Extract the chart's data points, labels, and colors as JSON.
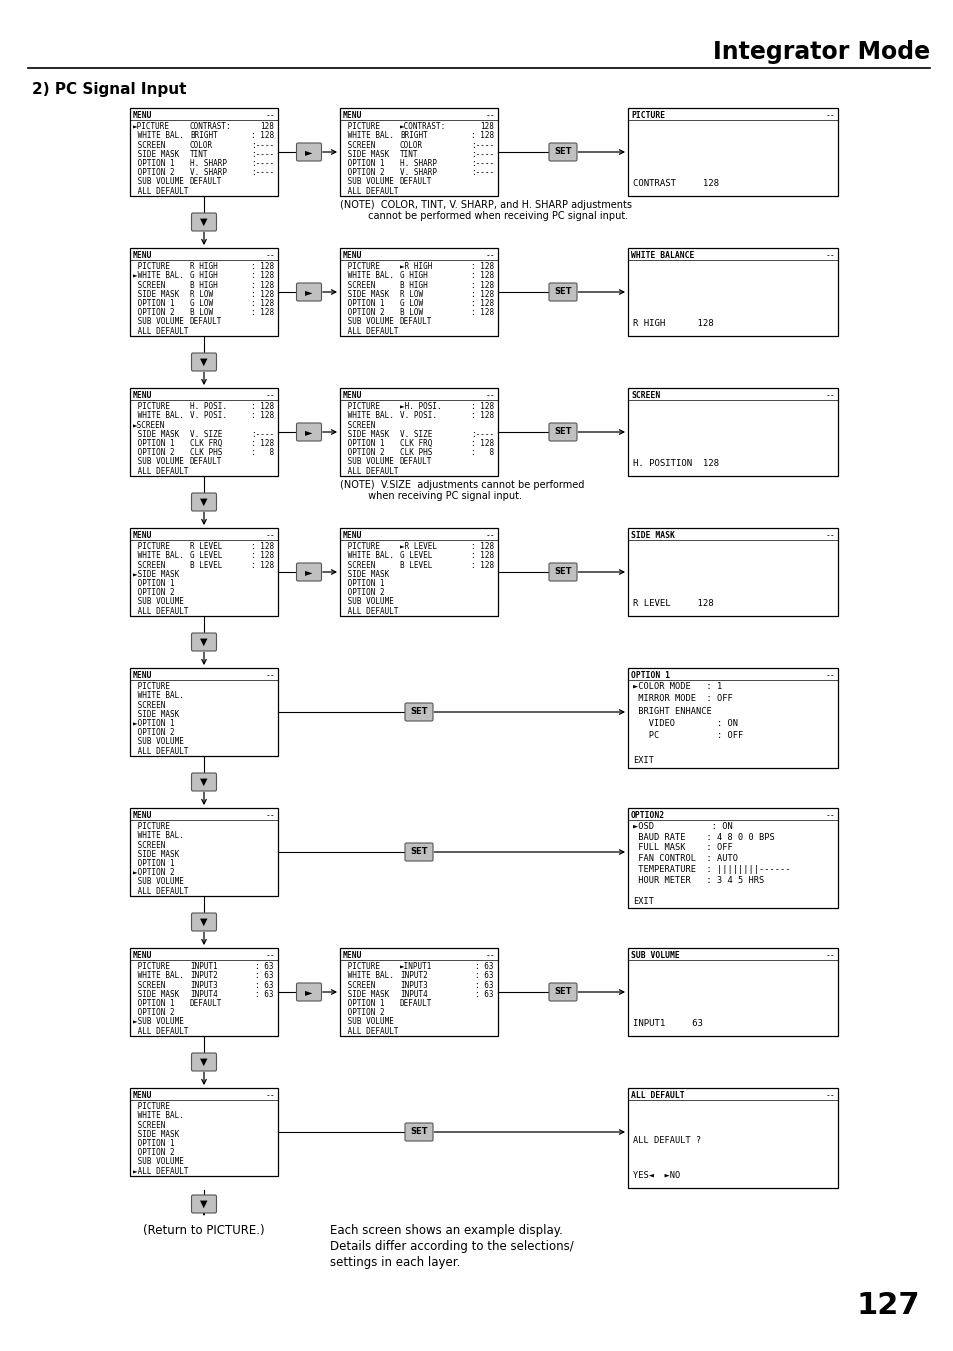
{
  "title": "Integrator Mode",
  "section": "2) PC Signal Input",
  "page_number": "127",
  "bg_color": "#ffffff",
  "rows": [
    {
      "left_menu": {
        "title": "MENU",
        "lines": [
          [
            "►PICTURE",
            "CONTRAST:",
            "128"
          ],
          [
            " WHITE BAL.",
            "BRIGHT",
            ": 128"
          ],
          [
            " SCREEN",
            "COLOR",
            ":----"
          ],
          [
            " SIDE MASK",
            "TINT",
            ":----"
          ],
          [
            " OPTION 1",
            "H. SHARP",
            ":----"
          ],
          [
            " OPTION 2",
            "V. SHARP",
            ":----"
          ],
          [
            " SUB VOLUME",
            "DEFAULT",
            ""
          ],
          [
            " ALL DEFAULT",
            "",
            ""
          ]
        ]
      },
      "has_mid": true,
      "mid_menu": {
        "title": "MENU",
        "lines": [
          [
            " PICTURE",
            "►CONTRAST:",
            "128"
          ],
          [
            " WHITE BAL.",
            "BRIGHT",
            ": 128"
          ],
          [
            " SCREEN",
            "COLOR",
            ":----"
          ],
          [
            " SIDE MASK",
            "TINT",
            ":----"
          ],
          [
            " OPTION 1",
            "H. SHARP",
            ":----"
          ],
          [
            " OPTION 2",
            "V. SHARP",
            ":----"
          ],
          [
            " SUB VOLUME",
            "DEFAULT",
            ""
          ],
          [
            " ALL DEFAULT",
            "",
            ""
          ]
        ]
      },
      "right_box": {
        "title": "PICTURE",
        "bottom_text": "CONTRAST     128"
      },
      "note_lines": [
        "(NOTE)  COLOR, TINT, V. SHARP, and H. SHARP adjustments",
        "         cannot be performed when receiving PC signal input."
      ]
    },
    {
      "left_menu": {
        "title": "MENU",
        "lines": [
          [
            " PICTURE",
            "R HIGH",
            ": 128"
          ],
          [
            "►WHITE BAL.",
            "G HIGH",
            ": 128"
          ],
          [
            " SCREEN",
            "B HIGH",
            ": 128"
          ],
          [
            " SIDE MASK",
            "R LOW",
            ": 128"
          ],
          [
            " OPTION 1",
            "G LOW",
            ": 128"
          ],
          [
            " OPTION 2",
            "B LOW",
            ": 128"
          ],
          [
            " SUB VOLUME",
            "DEFAULT",
            ""
          ],
          [
            " ALL DEFAULT",
            "",
            ""
          ]
        ]
      },
      "has_mid": true,
      "mid_menu": {
        "title": "MENU",
        "lines": [
          [
            " PICTURE",
            "►R HIGH",
            ": 128"
          ],
          [
            " WHITE BAL.",
            "G HIGH",
            ": 128"
          ],
          [
            " SCREEN",
            "B HIGH",
            ": 128"
          ],
          [
            " SIDE MASK",
            "R LOW",
            ": 128"
          ],
          [
            " OPTION 1",
            "G LOW",
            ": 128"
          ],
          [
            " OPTION 2",
            "B LOW",
            ": 128"
          ],
          [
            " SUB VOLUME",
            "DEFAULT",
            ""
          ],
          [
            " ALL DEFAULT",
            "",
            ""
          ]
        ]
      },
      "right_box": {
        "title": "WHITE BALANCE",
        "bottom_text": "R HIGH      128"
      },
      "note_lines": []
    },
    {
      "left_menu": {
        "title": "MENU",
        "lines": [
          [
            " PICTURE",
            "H. POSI.",
            ": 128"
          ],
          [
            " WHITE BAL.",
            "V. POSI.",
            ": 128"
          ],
          [
            "►SCREEN",
            "",
            ""
          ],
          [
            " SIDE MASK",
            "V. SIZE",
            ":----"
          ],
          [
            " OPTION 1",
            "CLK FRQ",
            ": 128"
          ],
          [
            " OPTION 2",
            "CLK PHS",
            ":   8"
          ],
          [
            " SUB VOLUME",
            "DEFAULT",
            ""
          ],
          [
            " ALL DEFAULT",
            "",
            ""
          ]
        ]
      },
      "has_mid": true,
      "mid_menu": {
        "title": "MENU",
        "lines": [
          [
            " PICTURE",
            "►H. POSI.",
            ": 128"
          ],
          [
            " WHITE BAL.",
            "V. POSI.",
            ": 128"
          ],
          [
            " SCREEN",
            "",
            ""
          ],
          [
            " SIDE MASK",
            "V. SIZE",
            ":----"
          ],
          [
            " OPTION 1",
            "CLK FRQ",
            ": 128"
          ],
          [
            " OPTION 2",
            "CLK PHS",
            ":   8"
          ],
          [
            " SUB VOLUME",
            "DEFAULT",
            ""
          ],
          [
            " ALL DEFAULT",
            "",
            ""
          ]
        ]
      },
      "right_box": {
        "title": "SCREEN",
        "bottom_text": "H. POSITION  128"
      },
      "note_lines": [
        "(NOTE)  V.SIZE  adjustments cannot be performed",
        "         when receiving PC signal input."
      ]
    },
    {
      "left_menu": {
        "title": "MENU",
        "lines": [
          [
            " PICTURE",
            "R LEVEL",
            ": 128"
          ],
          [
            " WHITE BAL.",
            "G LEVEL",
            ": 128"
          ],
          [
            " SCREEN",
            "B LEVEL",
            ": 128"
          ],
          [
            "►SIDE MASK",
            "",
            ""
          ],
          [
            " OPTION 1",
            "",
            ""
          ],
          [
            " OPTION 2",
            "",
            ""
          ],
          [
            " SUB VOLUME",
            "",
            ""
          ],
          [
            " ALL DEFAULT",
            "",
            ""
          ]
        ]
      },
      "has_mid": true,
      "mid_menu": {
        "title": "MENU",
        "lines": [
          [
            " PICTURE",
            "►R LEVEL",
            ": 128"
          ],
          [
            " WHITE BAL.",
            "G LEVEL",
            ": 128"
          ],
          [
            " SCREEN",
            "B LEVEL",
            ": 128"
          ],
          [
            " SIDE MASK",
            "",
            ""
          ],
          [
            " OPTION 1",
            "",
            ""
          ],
          [
            " OPTION 2",
            "",
            ""
          ],
          [
            " SUB VOLUME",
            "",
            ""
          ],
          [
            " ALL DEFAULT",
            "",
            ""
          ]
        ]
      },
      "right_box": {
        "title": "SIDE MASK",
        "bottom_text": "R LEVEL     128"
      },
      "note_lines": []
    },
    {
      "left_menu": {
        "title": "MENU",
        "lines": [
          [
            " PICTURE",
            "",
            ""
          ],
          [
            " WHITE BAL.",
            "",
            ""
          ],
          [
            " SCREEN",
            "",
            ""
          ],
          [
            " SIDE MASK",
            "",
            ""
          ],
          [
            "►OPTION 1",
            "",
            ""
          ],
          [
            " OPTION 2",
            "",
            ""
          ],
          [
            " SUB VOLUME",
            "",
            ""
          ],
          [
            " ALL DEFAULT",
            "",
            ""
          ]
        ]
      },
      "has_mid": false,
      "mid_menu": null,
      "right_box": {
        "title": "OPTION 1",
        "content_lines": [
          "►COLOR MODE   : 1",
          " MIRROR MODE  : OFF",
          " BRIGHT ENHANCE",
          "   VIDEO        : ON",
          "   PC           : OFF",
          "",
          "EXIT"
        ],
        "bottom_text": ""
      },
      "note_lines": []
    },
    {
      "left_menu": {
        "title": "MENU",
        "lines": [
          [
            " PICTURE",
            "",
            ""
          ],
          [
            " WHITE BAL.",
            "",
            ""
          ],
          [
            " SCREEN",
            "",
            ""
          ],
          [
            " SIDE MASK",
            "",
            ""
          ],
          [
            " OPTION 1",
            "",
            ""
          ],
          [
            "►OPTION 2",
            "",
            ""
          ],
          [
            " SUB VOLUME",
            "",
            ""
          ],
          [
            " ALL DEFAULT",
            "",
            ""
          ]
        ]
      },
      "has_mid": false,
      "mid_menu": null,
      "right_box": {
        "title": "OPTION2",
        "content_lines": [
          "►OSD           : ON",
          " BAUD RATE    : 4 8 0 0 BPS",
          " FULL MASK    : OFF",
          " FAN CONTROL  : AUTO",
          " TEMPERATURE  : ||||||||------",
          " HOUR METER   : 3 4 5 HRS",
          "",
          "EXIT"
        ],
        "bottom_text": ""
      },
      "note_lines": []
    },
    {
      "left_menu": {
        "title": "MENU",
        "lines": [
          [
            " PICTURE",
            "INPUT1",
            ": 63"
          ],
          [
            " WHITE BAL.",
            "INPUT2",
            ": 63"
          ],
          [
            " SCREEN",
            "INPUT3",
            ": 63"
          ],
          [
            " SIDE MASK",
            "INPUT4",
            ": 63"
          ],
          [
            " OPTION 1",
            "DEFAULT",
            ""
          ],
          [
            " OPTION 2",
            "",
            ""
          ],
          [
            "►SUB VOLUME",
            "",
            ""
          ],
          [
            " ALL DEFAULT",
            "",
            ""
          ]
        ]
      },
      "has_mid": true,
      "mid_menu": {
        "title": "MENU",
        "lines": [
          [
            " PICTURE",
            "►INPUT1",
            ": 63"
          ],
          [
            " WHITE BAL.",
            "INPUT2",
            ": 63"
          ],
          [
            " SCREEN",
            "INPUT3",
            ": 63"
          ],
          [
            " SIDE MASK",
            "INPUT4",
            ": 63"
          ],
          [
            " OPTION 1",
            "DEFAULT",
            ""
          ],
          [
            " OPTION 2",
            "",
            ""
          ],
          [
            " SUB VOLUME",
            "",
            ""
          ],
          [
            " ALL DEFAULT",
            "",
            ""
          ]
        ]
      },
      "right_box": {
        "title": "SUB VOLUME",
        "bottom_text": "INPUT1     63"
      },
      "note_lines": []
    },
    {
      "left_menu": {
        "title": "MENU",
        "lines": [
          [
            " PICTURE",
            "",
            ""
          ],
          [
            " WHITE BAL.",
            "",
            ""
          ],
          [
            " SCREEN",
            "",
            ""
          ],
          [
            " SIDE MASK",
            "",
            ""
          ],
          [
            " OPTION 1",
            "",
            ""
          ],
          [
            " OPTION 2",
            "",
            ""
          ],
          [
            " SUB VOLUME",
            "",
            ""
          ],
          [
            "►ALL DEFAULT",
            "",
            ""
          ]
        ]
      },
      "has_mid": false,
      "mid_menu": null,
      "right_box": {
        "title": "ALL DEFAULT",
        "content_lines": [
          "",
          "",
          "ALL DEFAULT ?",
          "",
          "YES◄  ►NO"
        ],
        "bottom_text": ""
      },
      "note_lines": []
    }
  ],
  "footer_left": "(Return to PICTURE.)",
  "footer_note1": "Each screen shows an example display.",
  "footer_note2": "Details differ according to the selections/",
  "footer_note3": "settings in each layer."
}
